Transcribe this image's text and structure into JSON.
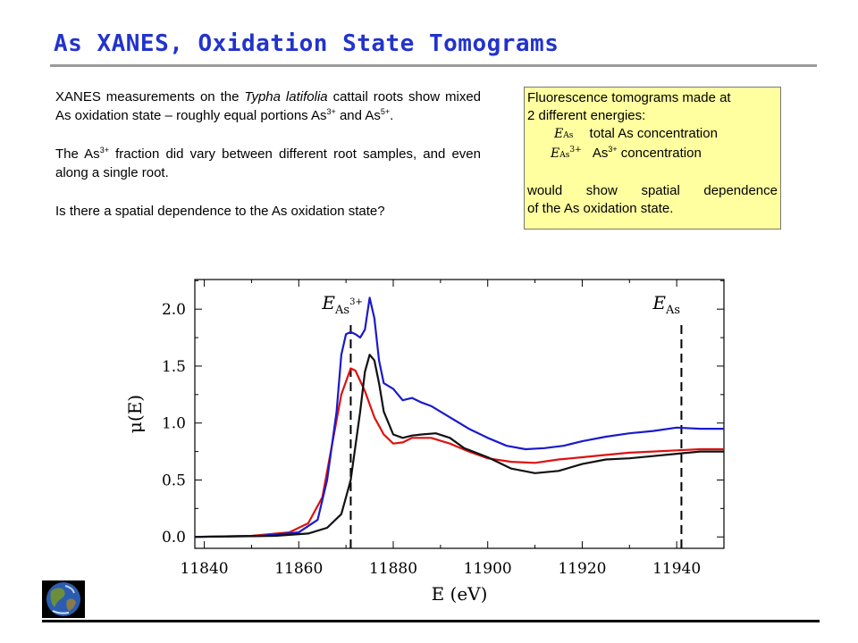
{
  "slide": {
    "title": "As XANES, Oxidation State Tomograms",
    "intro_pre": "XANES measurements on the ",
    "intro_species": "Typha latifolia",
    "intro_post": " cattail roots show mixed As oxidation state – roughly equal portions As",
    "intro_sup1": "3+",
    "intro_and": " and As",
    "intro_sup2": "5+",
    "intro_end": ".",
    "variation_pre": "The As",
    "variation_sup": "3+",
    "variation_post": " fraction did vary between different root samples, and even along a single root.",
    "question": "Is there a spatial dependence to the As oxidation state?"
  },
  "callout": {
    "line1": "Fluorescence tomograms made at",
    "line2": "2  different energies:",
    "e1_symbol": "E",
    "e1_sub": "As",
    "e1_desc": "total As concentration",
    "e2_symbol": "E",
    "e2_sub": "As",
    "e2_subsup": "3+",
    "e2_desc_pre": "As",
    "e2_desc_sup": "3+",
    "e2_desc_post": " concentration",
    "line5": "would  show  spatial  dependence",
    "line6": "of the As oxidation state."
  },
  "chart_data": {
    "type": "line",
    "xlabel": "E (eV)",
    "ylabel": "μ(E)",
    "xlim": [
      11838,
      11950
    ],
    "ylim": [
      -0.1,
      2.26
    ],
    "xticks": [
      11840,
      11860,
      11880,
      11900,
      11920,
      11940
    ],
    "yticks": [
      0.0,
      0.5,
      1.0,
      1.5,
      2.0
    ],
    "ytick_labels": [
      "0.0",
      "0.5",
      "1.0",
      "1.5",
      "2.0"
    ],
    "vlines": [
      {
        "x": 11871,
        "label": "E",
        "sub": "As",
        "subsup": "3+"
      },
      {
        "x": 11941,
        "label": "E",
        "sub": "As"
      }
    ],
    "series": [
      {
        "color": "#dd1111",
        "points": [
          [
            11838,
            0.0
          ],
          [
            11850,
            0.01
          ],
          [
            11858,
            0.04
          ],
          [
            11862,
            0.12
          ],
          [
            11865,
            0.35
          ],
          [
            11867,
            0.8
          ],
          [
            11869,
            1.25
          ],
          [
            11871,
            1.48
          ],
          [
            11872,
            1.46
          ],
          [
            11874,
            1.28
          ],
          [
            11876,
            1.05
          ],
          [
            11878,
            0.9
          ],
          [
            11880,
            0.82
          ],
          [
            11882,
            0.83
          ],
          [
            11884,
            0.87
          ],
          [
            11888,
            0.87
          ],
          [
            11892,
            0.82
          ],
          [
            11896,
            0.75
          ],
          [
            11900,
            0.69
          ],
          [
            11905,
            0.66
          ],
          [
            11910,
            0.65
          ],
          [
            11915,
            0.68
          ],
          [
            11920,
            0.7
          ],
          [
            11925,
            0.72
          ],
          [
            11930,
            0.74
          ],
          [
            11935,
            0.75
          ],
          [
            11940,
            0.76
          ],
          [
            11945,
            0.77
          ],
          [
            11950,
            0.77
          ]
        ]
      },
      {
        "color": "#1a1acc",
        "points": [
          [
            11838,
            0.0
          ],
          [
            11852,
            0.01
          ],
          [
            11860,
            0.04
          ],
          [
            11864,
            0.15
          ],
          [
            11866,
            0.5
          ],
          [
            11868,
            1.1
          ],
          [
            11869,
            1.6
          ],
          [
            11870,
            1.78
          ],
          [
            11871,
            1.8
          ],
          [
            11872,
            1.78
          ],
          [
            11873,
            1.75
          ],
          [
            11874,
            1.82
          ],
          [
            11875,
            2.1
          ],
          [
            11876,
            1.92
          ],
          [
            11877,
            1.55
          ],
          [
            11878,
            1.35
          ],
          [
            11880,
            1.3
          ],
          [
            11882,
            1.2
          ],
          [
            11884,
            1.22
          ],
          [
            11886,
            1.18
          ],
          [
            11888,
            1.15
          ],
          [
            11892,
            1.05
          ],
          [
            11896,
            0.95
          ],
          [
            11900,
            0.87
          ],
          [
            11904,
            0.8
          ],
          [
            11908,
            0.77
          ],
          [
            11912,
            0.78
          ],
          [
            11916,
            0.8
          ],
          [
            11920,
            0.84
          ],
          [
            11925,
            0.88
          ],
          [
            11930,
            0.91
          ],
          [
            11935,
            0.93
          ],
          [
            11940,
            0.96
          ],
          [
            11945,
            0.95
          ],
          [
            11950,
            0.95
          ]
        ]
      },
      {
        "color": "#111111",
        "points": [
          [
            11838,
            0.0
          ],
          [
            11855,
            0.01
          ],
          [
            11862,
            0.03
          ],
          [
            11866,
            0.08
          ],
          [
            11869,
            0.2
          ],
          [
            11871,
            0.5
          ],
          [
            11873,
            1.1
          ],
          [
            11874,
            1.45
          ],
          [
            11875,
            1.6
          ],
          [
            11876,
            1.55
          ],
          [
            11877,
            1.35
          ],
          [
            11878,
            1.1
          ],
          [
            11880,
            0.9
          ],
          [
            11882,
            0.87
          ],
          [
            11884,
            0.89
          ],
          [
            11886,
            0.9
          ],
          [
            11889,
            0.91
          ],
          [
            11892,
            0.87
          ],
          [
            11895,
            0.78
          ],
          [
            11900,
            0.7
          ],
          [
            11905,
            0.6
          ],
          [
            11910,
            0.56
          ],
          [
            11915,
            0.58
          ],
          [
            11920,
            0.64
          ],
          [
            11925,
            0.68
          ],
          [
            11930,
            0.69
          ],
          [
            11935,
            0.71
          ],
          [
            11940,
            0.73
          ],
          [
            11945,
            0.75
          ],
          [
            11950,
            0.75
          ]
        ]
      }
    ]
  }
}
